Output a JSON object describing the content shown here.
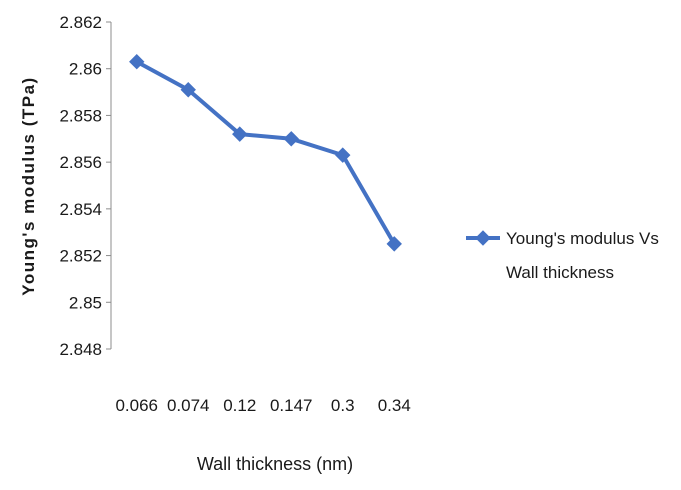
{
  "chart_data": {
    "type": "line",
    "title": "",
    "xlabel": "Wall thickness (nm)",
    "ylabel": "Young's modulus  (TPa)",
    "categories": [
      "0.066",
      "0.074",
      "0.12",
      "0.147",
      "0.3",
      "0.34"
    ],
    "series": [
      {
        "name": "Young's modulus Vs Wall thickness",
        "values": [
          2.8603,
          2.8591,
          2.8572,
          2.857,
          2.8563,
          2.8525
        ],
        "color": "#4472c4",
        "marker": "diamond"
      }
    ],
    "ylim": [
      2.848,
      2.862
    ],
    "yticks": [
      "2.848",
      "2.85",
      "2.852",
      "2.854",
      "2.856",
      "2.858",
      "2.86",
      "2.862"
    ],
    "grid": false,
    "legend_position": "right",
    "legend_lines": [
      "Young's modulus Vs",
      "Wall thickness"
    ]
  }
}
